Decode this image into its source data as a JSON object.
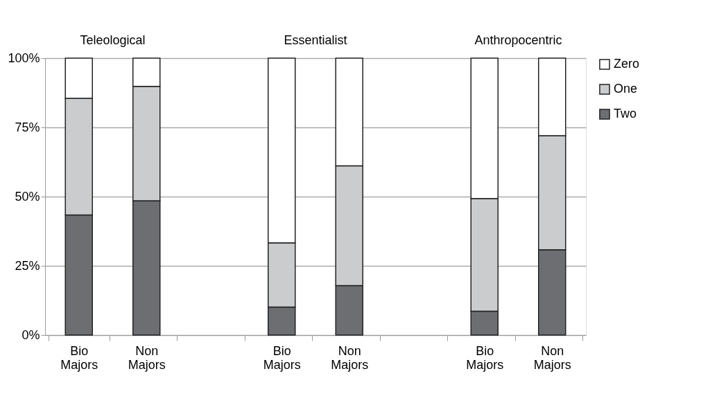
{
  "chart_data": {
    "type": "bar",
    "stacked": true,
    "categories": [
      "Bio Majors",
      "Non Majors",
      null,
      "Bio Majors",
      "Non Majors",
      null,
      "Bio Majors",
      "Non Majors"
    ],
    "series": [
      {
        "name": "Two",
        "color": "#6d6e71",
        "values": [
          43.4,
          48.5,
          null,
          10.1,
          17.9,
          null,
          8.6,
          30.8
        ]
      },
      {
        "name": "One",
        "color": "#cbcccd",
        "values": [
          42.1,
          41.3,
          null,
          23.2,
          43.2,
          null,
          40.7,
          41.2
        ]
      },
      {
        "name": "Zero",
        "color": "#ffffff",
        "values": [
          14.5,
          10.2,
          null,
          66.7,
          38.9,
          null,
          50.7,
          28.0
        ]
      }
    ],
    "ylim": [
      0,
      100
    ],
    "yticks": [
      {
        "value": 0,
        "label": "0%"
      },
      {
        "value": 25,
        "label": "25%"
      },
      {
        "value": 50,
        "label": "50%"
      },
      {
        "value": 75,
        "label": "75%"
      },
      {
        "value": 100,
        "label": "100%"
      }
    ],
    "grid": "y",
    "legend": "right",
    "annotations": [
      "Teleological",
      "Essentialist",
      "Anthropocentric"
    ]
  }
}
